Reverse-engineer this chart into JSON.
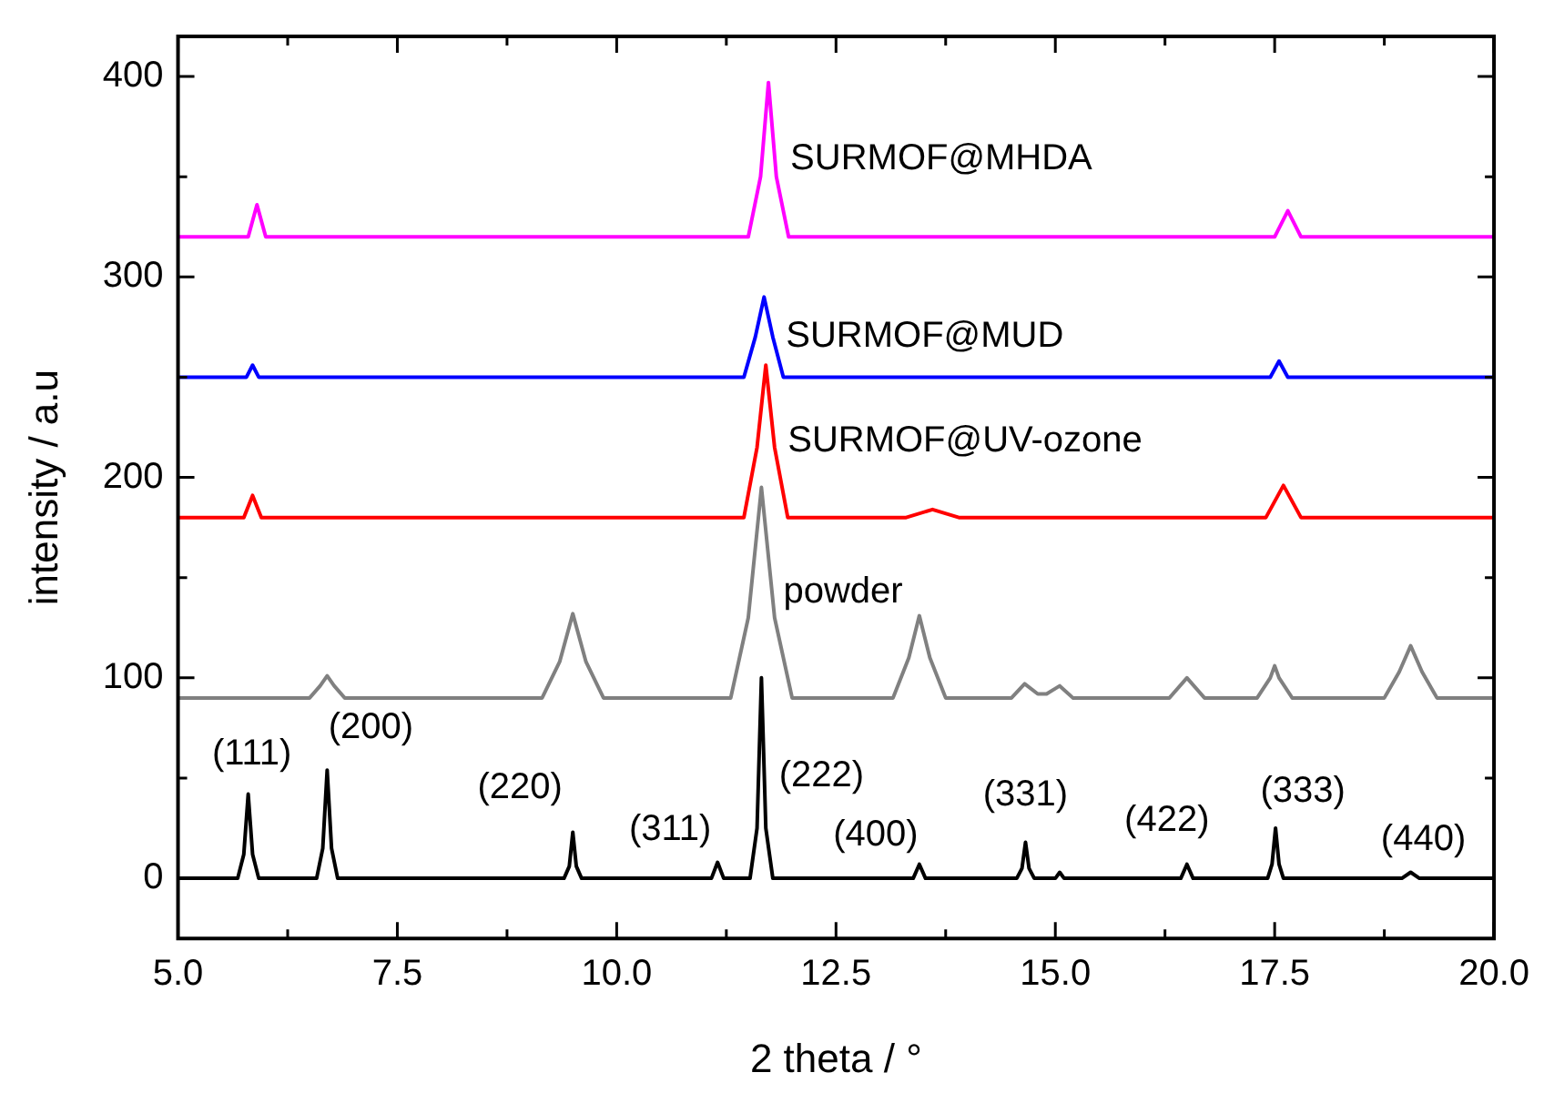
{
  "chart_data": {
    "type": "line",
    "xlabel": "2 theta / °",
    "ylabel": "intensity / a.u",
    "xlim": [
      5,
      20
    ],
    "ylim": [
      -30,
      420
    ],
    "xticks": [
      {
        "value": 5,
        "label": "5.0"
      },
      {
        "value": 6.25,
        "label": null
      },
      {
        "value": 7.5,
        "label": "7.5"
      },
      {
        "value": 8.75,
        "label": null
      },
      {
        "value": 10,
        "label": "10.0"
      },
      {
        "value": 11.25,
        "label": null
      },
      {
        "value": 12.5,
        "label": "12.5"
      },
      {
        "value": 13.75,
        "label": null
      },
      {
        "value": 15,
        "label": "15.0"
      },
      {
        "value": 16.25,
        "label": null
      },
      {
        "value": 17.5,
        "label": "17.5"
      },
      {
        "value": 18.75,
        "label": null
      },
      {
        "value": 20,
        "label": "20.0"
      }
    ],
    "yticks": [
      0,
      {
        "value": 50,
        "label": null
      },
      100,
      {
        "value": 150,
        "label": null
      },
      200,
      {
        "value": 250,
        "label": null
      },
      300,
      {
        "value": 350,
        "label": null
      },
      400
    ],
    "grid": false,
    "legend": false,
    "marker": "none",
    "line_style": "solid",
    "series": [
      {
        "color": "#000000",
        "x": [
          5,
          5.68,
          5.75,
          5.8,
          5.85,
          5.92,
          6.58,
          6.65,
          6.7,
          6.75,
          6.82,
          9.4,
          9.46,
          9.5,
          9.54,
          9.6,
          11.08,
          11.15,
          11.22,
          11.52,
          11.6,
          11.65,
          11.7,
          11.78,
          13.38,
          13.45,
          13.52,
          14.56,
          14.62,
          14.66,
          14.7,
          14.76,
          15.0,
          15.05,
          15.1,
          16.43,
          16.5,
          16.57,
          17.42,
          17.47,
          17.51,
          17.55,
          17.6,
          18.95,
          19.05,
          19.15,
          20
        ],
        "values": [
          0,
          0,
          12,
          42,
          12,
          0,
          0,
          15,
          54,
          15,
          0,
          0,
          6,
          23,
          6,
          0,
          0,
          8,
          0,
          0,
          25,
          100,
          25,
          0,
          0,
          7,
          0,
          0,
          5,
          18,
          5,
          0,
          0,
          3,
          0,
          0,
          7,
          0,
          0,
          7,
          25,
          7,
          0,
          0,
          3,
          0,
          0
        ]
      },
      {
        "name": "powder",
        "color": "#808080",
        "x": [
          5,
          6.5,
          6.62,
          6.7,
          6.78,
          6.9,
          9.15,
          9.35,
          9.5,
          9.65,
          9.85,
          11.3,
          11.5,
          11.65,
          11.8,
          12.0,
          13.15,
          13.33,
          13.45,
          13.57,
          13.75,
          14.5,
          14.65,
          14.8,
          14.9,
          15.05,
          15.2,
          16.3,
          16.5,
          16.7,
          17.3,
          17.45,
          17.5,
          17.55,
          17.7,
          18.75,
          18.92,
          19.05,
          19.18,
          19.35,
          20
        ],
        "values": [
          90,
          90,
          96,
          101,
          96,
          90,
          90,
          108,
          132,
          108,
          90,
          90,
          130,
          195,
          130,
          90,
          90,
          110,
          131,
          110,
          90,
          90,
          97,
          92,
          92,
          96,
          90,
          90,
          100,
          90,
          90,
          100,
          106,
          100,
          90,
          90,
          103,
          116,
          103,
          90,
          90
        ]
      },
      {
        "name": "SURMOF@UV-ozone",
        "color": "#ff0000",
        "x": [
          5,
          5.75,
          5.85,
          5.95,
          11.45,
          11.6,
          11.7,
          11.8,
          11.95,
          13.3,
          13.6,
          13.9,
          17.4,
          17.6,
          17.8,
          20
        ],
        "values": [
          180,
          180,
          191,
          180,
          180,
          215,
          256,
          215,
          180,
          180,
          184,
          180,
          180,
          196,
          180,
          180
        ]
      },
      {
        "name": "SURMOF@MUD",
        "color": "#0000ff",
        "x": [
          5,
          5.78,
          5.85,
          5.92,
          11.45,
          11.58,
          11.68,
          11.78,
          11.9,
          17.45,
          17.55,
          17.65,
          20
        ],
        "values": [
          250,
          250,
          256,
          250,
          250,
          270,
          290,
          270,
          250,
          250,
          258,
          250,
          250
        ]
      },
      {
        "name": "SURMOF@MHDA",
        "color": "#ff00ff",
        "x": [
          5,
          5.8,
          5.9,
          6.0,
          11.5,
          11.64,
          11.73,
          11.82,
          11.96,
          17.5,
          17.65,
          17.8,
          20
        ],
        "values": [
          320,
          320,
          336,
          320,
          320,
          350,
          397,
          350,
          320,
          320,
          333,
          320,
          320
        ]
      }
    ],
    "annotations": [
      {
        "text": "(111)",
        "x": 5.8,
        "y": 42
      },
      {
        "text": "(200)",
        "x": 6.7,
        "y": 54
      },
      {
        "text": "(220)",
        "x": 9.5,
        "y": 23
      },
      {
        "text": "(311)",
        "x": 11.15,
        "y": 8
      },
      {
        "text": "(222)",
        "x": 11.65,
        "y": 100
      },
      {
        "text": "(400)",
        "x": 13.45,
        "y": 7
      },
      {
        "text": "(331)",
        "x": 14.66,
        "y": 18
      },
      {
        "text": "(422)",
        "x": 16.5,
        "y": 7
      },
      {
        "text": "(333)",
        "x": 17.51,
        "y": 25
      },
      {
        "text": "(440)",
        "x": 19.05,
        "y": 3
      }
    ]
  }
}
